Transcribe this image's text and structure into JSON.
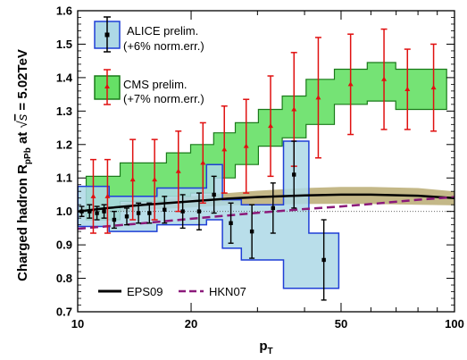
{
  "chart_data": {
    "type": "scatter",
    "xlabel": "p",
    "xlabel_sub": "T",
    "ylabel": {
      "part1": "Charged hadron R",
      "part1_sub": "pPb",
      "part2": " at ",
      "sqrt_arg": "s",
      "part3": " = 5.02TeV"
    },
    "x_scale": "log",
    "xlim": [
      10,
      100
    ],
    "ylim": [
      0.7,
      1.6
    ],
    "x_ticks": [
      10,
      20,
      50,
      100
    ],
    "x_tick_labels": [
      "10",
      "20",
      "50",
      "100"
    ],
    "y_ticks": [
      0.7,
      0.8,
      0.9,
      1.0,
      1.1,
      1.2,
      1.3,
      1.4,
      1.5,
      1.6
    ],
    "y_tick_labels": [
      "0.7",
      "0.8",
      "0.9",
      "1.0",
      "1.1",
      "1.2",
      "1.3",
      "1.4",
      "1.5",
      "1.6"
    ],
    "reference_line": 1.0,
    "legend": {
      "alice": {
        "line1": "ALICE prelim.",
        "line2": "(+6% norm.err.)"
      },
      "cms": {
        "line1": "CMS prelim.",
        "line2": "(+7% norm.err.)"
      },
      "eps09": "EPS09",
      "hkn07": "HKN07"
    },
    "colors": {
      "alice_fill": "#add8e6",
      "alice_edge": "#1f3fd6",
      "cms_fill": "#66e066",
      "cms_edge": "#1a7a1a",
      "cms_marker": "#e01010",
      "alice_marker": "#000000",
      "eps09_line": "#000000",
      "eps09_band": "#b0a060",
      "hkn07_line": "#8b1a7a"
    },
    "series": [
      {
        "name": "ALICE prelim.",
        "x": [
          10.25,
          10.75,
          11.25,
          11.75,
          12.5,
          13.5,
          14.5,
          15.5,
          17,
          19,
          21,
          23,
          25.5,
          29,
          33,
          37.5,
          45
        ],
        "y": [
          1.0,
          1.0,
          0.995,
          1.0,
          0.975,
          0.985,
          0.995,
          0.995,
          1.005,
          1.0,
          1.0,
          1.05,
          0.965,
          0.94,
          1.01,
          1.11,
          0.855
        ],
        "yerr": [
          0.015,
          0.02,
          0.02,
          0.02,
          0.025,
          0.025,
          0.03,
          0.03,
          0.04,
          0.05,
          0.055,
          0.055,
          0.06,
          0.08,
          0.075,
          0.1,
          0.12
        ],
        "sys_low": [
          0.955,
          0.955,
          0.955,
          0.955,
          0.94,
          0.94,
          0.94,
          0.94,
          0.96,
          0.96,
          0.96,
          0.975,
          0.89,
          0.855,
          0.855,
          0.77,
          0.77
        ],
        "sys_high": [
          1.075,
          1.075,
          1.075,
          1.075,
          1.045,
          1.045,
          1.045,
          1.045,
          1.07,
          1.07,
          1.07,
          1.14,
          1.035,
          1.02,
          1.02,
          1.21,
          0.935
        ]
      },
      {
        "name": "CMS prelim.",
        "x": [
          11,
          12,
          14,
          16,
          18.5,
          21.5,
          24.5,
          28,
          32.5,
          37.5,
          43.5,
          53,
          65,
          75,
          88
        ],
        "y": [
          1.045,
          1.045,
          1.095,
          1.095,
          1.12,
          1.145,
          1.185,
          1.195,
          1.255,
          1.305,
          1.34,
          1.38,
          1.395,
          1.365,
          1.37
        ],
        "yerr": [
          0.11,
          0.11,
          0.12,
          0.12,
          0.12,
          0.12,
          0.13,
          0.14,
          0.15,
          0.17,
          0.18,
          0.15,
          0.15,
          0.12,
          0.13
        ],
        "sys_low": [
          0.975,
          0.975,
          1.03,
          1.03,
          1.045,
          1.055,
          1.1,
          1.14,
          1.195,
          1.22,
          1.26,
          1.32,
          1.33,
          1.305,
          1.305
        ],
        "sys_high": [
          1.105,
          1.105,
          1.145,
          1.145,
          1.175,
          1.2,
          1.235,
          1.265,
          1.305,
          1.345,
          1.395,
          1.425,
          1.445,
          1.425,
          1.425
        ]
      },
      {
        "name": "EPS09",
        "x": [
          10,
          12,
          15,
          20,
          25,
          30,
          40,
          50,
          60,
          80,
          100
        ],
        "y": [
          1.0,
          1.01,
          1.02,
          1.03,
          1.038,
          1.043,
          1.048,
          1.05,
          1.05,
          1.047,
          1.04
        ],
        "band_low": [
          0.985,
          0.995,
          1.005,
          1.012,
          1.018,
          1.02,
          1.022,
          1.023,
          1.022,
          1.02,
          1.018
        ],
        "band_high": [
          1.01,
          1.02,
          1.032,
          1.045,
          1.055,
          1.062,
          1.07,
          1.073,
          1.073,
          1.07,
          1.06
        ]
      },
      {
        "name": "HKN07",
        "x": [
          10,
          15,
          20,
          25,
          30,
          40,
          50,
          60,
          80,
          100
        ],
        "y": [
          0.948,
          0.965,
          0.978,
          0.988,
          0.996,
          1.007,
          1.015,
          1.022,
          1.035,
          1.043
        ]
      }
    ]
  }
}
